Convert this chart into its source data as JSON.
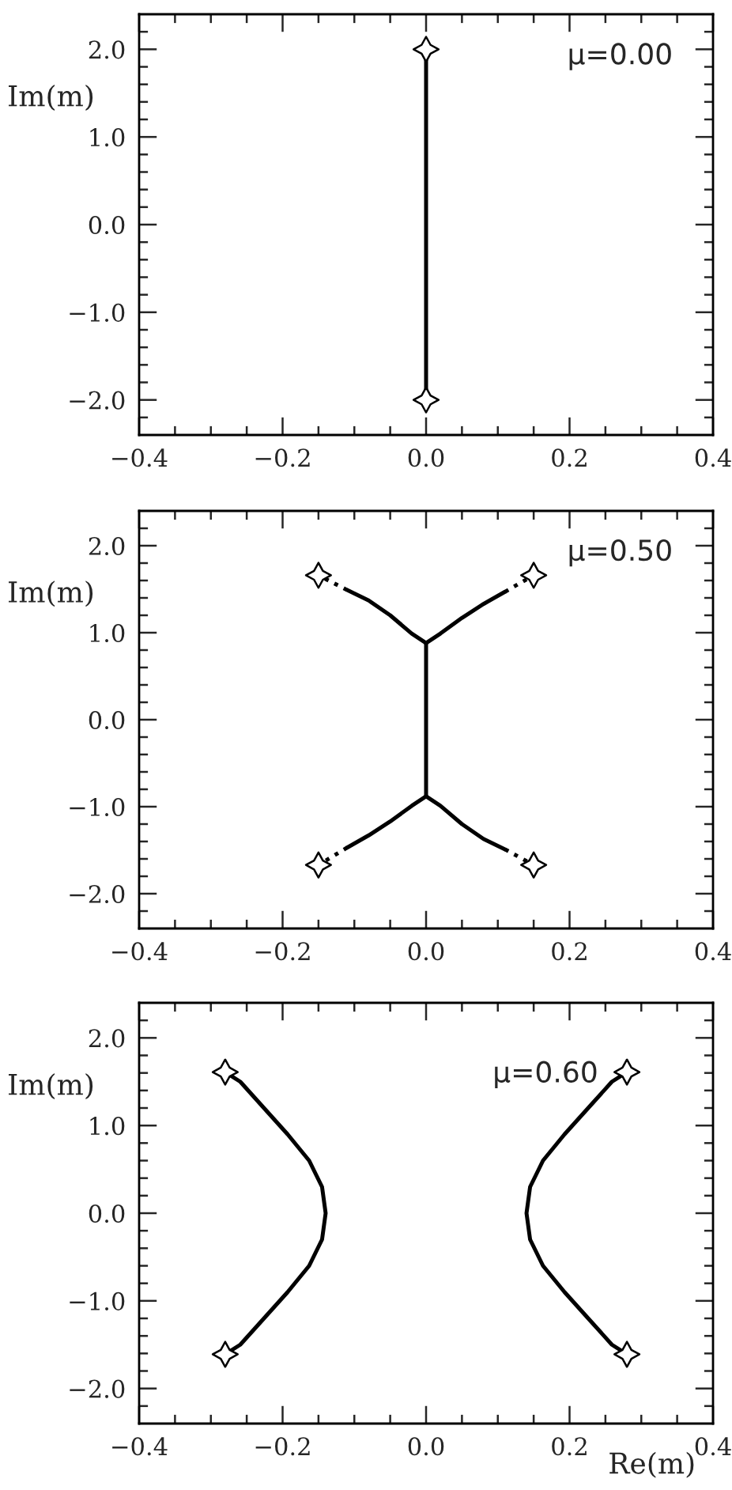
{
  "chart_data": [
    {
      "type": "line",
      "ylabel": "Im(m)",
      "annotations": [
        "μ=0.00"
      ],
      "xlim": [
        -0.4,
        0.4
      ],
      "ylim": [
        -2.4,
        2.4
      ],
      "xticks": [
        {
          "value": -0.4,
          "label": "−0.4"
        },
        {
          "value": -0.35,
          "label": null
        },
        {
          "value": -0.3,
          "label": null
        },
        {
          "value": -0.25,
          "label": null
        },
        {
          "value": -0.2,
          "label": "−0.2"
        },
        {
          "value": -0.15,
          "label": null
        },
        {
          "value": -0.1,
          "label": null
        },
        {
          "value": -0.05,
          "label": null
        },
        {
          "value": 0.0,
          "label": "0.0"
        },
        {
          "value": 0.05,
          "label": null
        },
        {
          "value": 0.1,
          "label": null
        },
        {
          "value": 0.15,
          "label": null
        },
        {
          "value": 0.2,
          "label": "0.2"
        },
        {
          "value": 0.25,
          "label": null
        },
        {
          "value": 0.3,
          "label": null
        },
        {
          "value": 0.35,
          "label": null
        },
        {
          "value": 0.4,
          "label": "0.4"
        }
      ],
      "yticks": [
        {
          "value": -2.2,
          "label": null
        },
        {
          "value": -2.0,
          "label": "−2.0"
        },
        {
          "value": -1.8,
          "label": null
        },
        {
          "value": -1.6,
          "label": null
        },
        {
          "value": -1.4,
          "label": null
        },
        {
          "value": -1.2,
          "label": null
        },
        {
          "value": -1.0,
          "label": "−1.0"
        },
        {
          "value": -0.8,
          "label": null
        },
        {
          "value": -0.6,
          "label": null
        },
        {
          "value": -0.4,
          "label": null
        },
        {
          "value": -0.2,
          "label": null
        },
        {
          "value": 0.0,
          "label": "0.0"
        },
        {
          "value": 0.2,
          "label": null
        },
        {
          "value": 0.4,
          "label": null
        },
        {
          "value": 0.6,
          "label": null
        },
        {
          "value": 0.8,
          "label": null
        },
        {
          "value": 1.0,
          "label": "1.0"
        },
        {
          "value": 1.2,
          "label": null
        },
        {
          "value": 1.4,
          "label": null
        },
        {
          "value": 1.6,
          "label": null
        },
        {
          "value": 1.8,
          "label": null
        },
        {
          "value": 2.0,
          "label": "2.0"
        },
        {
          "value": 2.2,
          "label": null
        }
      ],
      "series": [
        {
          "type": "line",
          "color": "#000000",
          "marker": "none",
          "line_style": "solid",
          "x": [
            0.0,
            0.0,
            0.0,
            0.0,
            0.0
          ],
          "values": [
            -2.0,
            -1.0,
            0.0,
            1.0,
            2.0
          ]
        },
        {
          "type": "scatter",
          "color": "#000000",
          "marker": "star",
          "x": [
            0.0,
            0.0
          ],
          "values": [
            2.0,
            -2.0
          ]
        }
      ]
    },
    {
      "type": "line",
      "ylabel": "Im(m)",
      "annotations": [
        "μ=0.50"
      ],
      "xlim": [
        -0.4,
        0.4
      ],
      "ylim": [
        -2.4,
        2.4
      ],
      "xticks": [
        {
          "value": -0.4,
          "label": "−0.4"
        },
        {
          "value": -0.35,
          "label": null
        },
        {
          "value": -0.3,
          "label": null
        },
        {
          "value": -0.25,
          "label": null
        },
        {
          "value": -0.2,
          "label": "−0.2"
        },
        {
          "value": -0.15,
          "label": null
        },
        {
          "value": -0.1,
          "label": null
        },
        {
          "value": -0.05,
          "label": null
        },
        {
          "value": 0.0,
          "label": "0.0"
        },
        {
          "value": 0.05,
          "label": null
        },
        {
          "value": 0.1,
          "label": null
        },
        {
          "value": 0.15,
          "label": null
        },
        {
          "value": 0.2,
          "label": "0.2"
        },
        {
          "value": 0.25,
          "label": null
        },
        {
          "value": 0.3,
          "label": null
        },
        {
          "value": 0.35,
          "label": null
        },
        {
          "value": 0.4,
          "label": "0.4"
        }
      ],
      "yticks": [
        {
          "value": -2.2,
          "label": null
        },
        {
          "value": -2.0,
          "label": "−2.0"
        },
        {
          "value": -1.8,
          "label": null
        },
        {
          "value": -1.6,
          "label": null
        },
        {
          "value": -1.4,
          "label": null
        },
        {
          "value": -1.2,
          "label": null
        },
        {
          "value": -1.0,
          "label": "−1.0"
        },
        {
          "value": -0.8,
          "label": null
        },
        {
          "value": -0.6,
          "label": null
        },
        {
          "value": -0.4,
          "label": null
        },
        {
          "value": -0.2,
          "label": null
        },
        {
          "value": 0.0,
          "label": "0.0"
        },
        {
          "value": 0.2,
          "label": null
        },
        {
          "value": 0.4,
          "label": null
        },
        {
          "value": 0.6,
          "label": null
        },
        {
          "value": 0.8,
          "label": null
        },
        {
          "value": 1.0,
          "label": "1.0"
        },
        {
          "value": 1.2,
          "label": null
        },
        {
          "value": 1.4,
          "label": null
        },
        {
          "value": 1.6,
          "label": null
        },
        {
          "value": 1.8,
          "label": null
        },
        {
          "value": 2.0,
          "label": "2.0"
        },
        {
          "value": 2.2,
          "label": null
        }
      ],
      "series": [
        {
          "type": "line",
          "color": "#000000",
          "marker": "none",
          "line_style": "solid",
          "x": [
            0.0,
            0.0
          ],
          "values": [
            -0.88,
            0.88
          ]
        },
        {
          "type": "line",
          "color": "#000000",
          "marker": "none",
          "line_style": "solid",
          "x": [
            0.0,
            0.02,
            0.05,
            0.08,
            0.11
          ],
          "values": [
            0.88,
            0.99,
            1.17,
            1.33,
            1.47
          ]
        },
        {
          "type": "line",
          "color": "#000000",
          "marker": "none",
          "line_style": "dotted",
          "x": [
            0.11,
            0.15
          ],
          "values": [
            1.47,
            1.66
          ]
        },
        {
          "type": "line",
          "color": "#000000",
          "marker": "none",
          "line_style": "solid",
          "x": [
            0.0,
            -0.02,
            -0.05,
            -0.08,
            -0.11
          ],
          "values": [
            0.88,
            0.99,
            1.2,
            1.37,
            1.49
          ]
        },
        {
          "type": "line",
          "color": "#000000",
          "marker": "none",
          "line_style": "dotted",
          "x": [
            -0.11,
            -0.15
          ],
          "values": [
            1.49,
            1.66
          ]
        },
        {
          "type": "line",
          "color": "#000000",
          "marker": "none",
          "line_style": "solid",
          "x": [
            0.0,
            0.02,
            0.05,
            0.08,
            0.11
          ],
          "values": [
            -0.88,
            -0.99,
            -1.2,
            -1.37,
            -1.49
          ]
        },
        {
          "type": "line",
          "color": "#000000",
          "marker": "none",
          "line_style": "dotted",
          "x": [
            0.11,
            0.15
          ],
          "values": [
            -1.49,
            -1.67
          ]
        },
        {
          "type": "line",
          "color": "#000000",
          "marker": "none",
          "line_style": "solid",
          "x": [
            0.0,
            -0.02,
            -0.05,
            -0.08,
            -0.11
          ],
          "values": [
            -0.88,
            -0.99,
            -1.17,
            -1.33,
            -1.47
          ]
        },
        {
          "type": "line",
          "color": "#000000",
          "marker": "none",
          "line_style": "dotted",
          "x": [
            -0.11,
            -0.15
          ],
          "values": [
            -1.47,
            -1.67
          ]
        },
        {
          "type": "scatter",
          "color": "#000000",
          "marker": "star",
          "x": [
            -0.15,
            0.15,
            -0.15,
            0.15
          ],
          "values": [
            1.66,
            1.66,
            -1.67,
            -1.67
          ]
        }
      ]
    },
    {
      "type": "line",
      "xlabel": "Re(m)",
      "ylabel": "Im(m)",
      "annotations": [
        "μ=0.60"
      ],
      "xlim": [
        -0.4,
        0.4
      ],
      "ylim": [
        -2.4,
        2.4
      ],
      "xticks": [
        {
          "value": -0.4,
          "label": "−0.4"
        },
        {
          "value": -0.35,
          "label": null
        },
        {
          "value": -0.3,
          "label": null
        },
        {
          "value": -0.25,
          "label": null
        },
        {
          "value": -0.2,
          "label": "−0.2"
        },
        {
          "value": -0.15,
          "label": null
        },
        {
          "value": -0.1,
          "label": null
        },
        {
          "value": -0.05,
          "label": null
        },
        {
          "value": 0.0,
          "label": "0.0"
        },
        {
          "value": 0.05,
          "label": null
        },
        {
          "value": 0.1,
          "label": null
        },
        {
          "value": 0.15,
          "label": null
        },
        {
          "value": 0.2,
          "label": "0.2"
        },
        {
          "value": 0.25,
          "label": null
        },
        {
          "value": 0.3,
          "label": null
        },
        {
          "value": 0.35,
          "label": null
        },
        {
          "value": 0.4,
          "label": "0.4"
        }
      ],
      "yticks": [
        {
          "value": -2.2,
          "label": null
        },
        {
          "value": -2.0,
          "label": "−2.0"
        },
        {
          "value": -1.8,
          "label": null
        },
        {
          "value": -1.6,
          "label": null
        },
        {
          "value": -1.4,
          "label": null
        },
        {
          "value": -1.2,
          "label": null
        },
        {
          "value": -1.0,
          "label": "−1.0"
        },
        {
          "value": -0.8,
          "label": null
        },
        {
          "value": -0.6,
          "label": null
        },
        {
          "value": -0.4,
          "label": null
        },
        {
          "value": -0.2,
          "label": null
        },
        {
          "value": 0.0,
          "label": "0.0"
        },
        {
          "value": 0.2,
          "label": null
        },
        {
          "value": 0.4,
          "label": null
        },
        {
          "value": 0.6,
          "label": null
        },
        {
          "value": 0.8,
          "label": null
        },
        {
          "value": 1.0,
          "label": "1.0"
        },
        {
          "value": 1.2,
          "label": null
        },
        {
          "value": 1.4,
          "label": null
        },
        {
          "value": 1.6,
          "label": null
        },
        {
          "value": 1.8,
          "label": null
        },
        {
          "value": 2.0,
          "label": "2.0"
        },
        {
          "value": 2.2,
          "label": null
        }
      ],
      "series": [
        {
          "type": "line",
          "color": "#000000",
          "marker": "none",
          "line_style": "solid",
          "x": [
            0.28,
            0.259,
            0.226,
            0.193,
            0.163,
            0.145,
            0.14,
            0.145,
            0.163,
            0.193,
            0.226,
            0.259,
            0.28
          ],
          "values": [
            1.61,
            1.5,
            1.2,
            0.9,
            0.6,
            0.3,
            0.0,
            -0.3,
            -0.6,
            -0.9,
            -1.2,
            -1.5,
            -1.61
          ]
        },
        {
          "type": "line",
          "color": "#000000",
          "marker": "none",
          "line_style": "solid",
          "x": [
            -0.28,
            -0.259,
            -0.226,
            -0.193,
            -0.163,
            -0.145,
            -0.14,
            -0.145,
            -0.163,
            -0.193,
            -0.226,
            -0.259,
            -0.28
          ],
          "values": [
            1.61,
            1.5,
            1.2,
            0.9,
            0.6,
            0.3,
            0.0,
            -0.3,
            -0.6,
            -0.9,
            -1.2,
            -1.5,
            -1.61
          ]
        },
        {
          "type": "scatter",
          "color": "#000000",
          "marker": "star",
          "x": [
            -0.28,
            0.28,
            -0.28,
            0.28
          ],
          "values": [
            1.61,
            1.61,
            -1.61,
            -1.61
          ]
        }
      ]
    }
  ]
}
